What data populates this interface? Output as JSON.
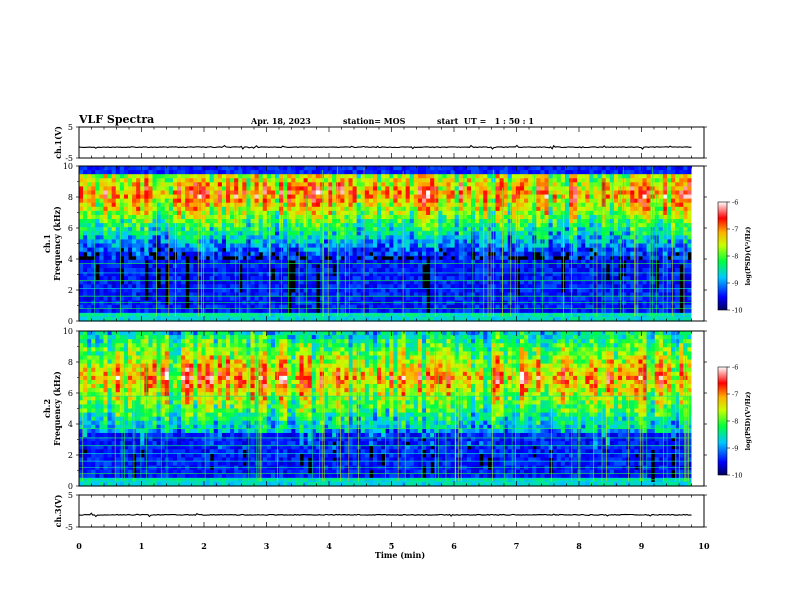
{
  "header": {
    "title": "VLF Spectra",
    "date": "Apr. 18, 2023",
    "station": "station= MOS",
    "start": "start  UT =   1 : 50 : 1"
  },
  "chart_data": [
    {
      "type": "line",
      "panel": "ch1-waveform",
      "ylabel": "ch.1(V)",
      "ylim": [
        -5,
        5
      ],
      "yticks": [
        "5",
        "-5"
      ],
      "xlim": [
        0,
        10
      ],
      "series": [
        {
          "values_summary": "near-constant trace around -1.5 V",
          "level": -1.5
        }
      ]
    },
    {
      "type": "heatmap",
      "panel": "ch1-spectrogram",
      "ylabel": "ch.1\nFrequency  (kHz)",
      "ylim": [
        0,
        10
      ],
      "yticks": [
        "0",
        "2",
        "4",
        "6",
        "8",
        "10"
      ],
      "xlim": [
        0,
        10
      ],
      "colorbar": {
        "label": "log(PSD)(V²/Hz)",
        "ticks": [
          "-6",
          "-7",
          "-8",
          "-9",
          "-10"
        ],
        "range": [
          -10,
          -6
        ]
      },
      "band": {
        "low_khz": 4,
        "high_khz": 9.6,
        "peak_khz": 8.2
      }
    },
    {
      "type": "heatmap",
      "panel": "ch2-spectrogram",
      "ylabel": "ch.2\nFrequency  (kHz)",
      "ylim": [
        0,
        10
      ],
      "yticks": [
        "0",
        "2",
        "4",
        "6",
        "8",
        "10"
      ],
      "xlim": [
        0,
        10
      ],
      "colorbar": {
        "label": "log(PSD)(V²/Hz)",
        "ticks": [
          "-6",
          "-7",
          "-8",
          "-9",
          "-10"
        ],
        "range": [
          -10,
          -6
        ]
      },
      "band": {
        "low_khz": 3.5,
        "high_khz": 10,
        "peak_khz": 7
      }
    },
    {
      "type": "line",
      "panel": "ch3-waveform",
      "ylabel": "ch.3(V)",
      "ylim": [
        -5,
        5
      ],
      "yticks": [
        "5",
        "-5"
      ],
      "xlim": [
        0,
        10
      ],
      "xlabel": "Time  (min)",
      "xticks": [
        "0",
        "1",
        "2",
        "3",
        "4",
        "5",
        "6",
        "7",
        "8",
        "9",
        "10"
      ],
      "series": [
        {
          "values_summary": "near-constant trace around -1.2 V",
          "level": -1.2
        }
      ]
    }
  ],
  "colors": {
    "background": "#000000",
    "colormap": [
      "#000080",
      "#0000ff",
      "#00ffff",
      "#00ff00",
      "#ffff00",
      "#ff0000",
      "#ffffff"
    ]
  }
}
